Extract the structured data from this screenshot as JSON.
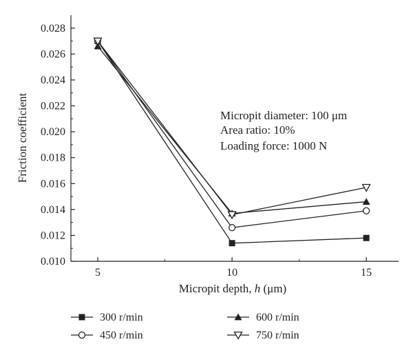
{
  "chart_data": {
    "type": "line",
    "xlabel": "Micropit depth, h (μm)",
    "xlabel_parts": {
      "prefix": "Micropit depth, ",
      "var": "h",
      "suffix": " (μm)"
    },
    "ylabel": "Friction coefficient",
    "x": [
      5,
      10,
      15
    ],
    "x_tick_labels": [
      "5",
      "10",
      "15"
    ],
    "xlim": [
      4,
      16.2
    ],
    "ylim": [
      0.01,
      0.029
    ],
    "y_ticks": [
      0.01,
      0.012,
      0.014,
      0.016,
      0.018,
      0.02,
      0.022,
      0.024,
      0.026,
      0.028
    ],
    "y_tick_labels": [
      "0.010",
      "0.012",
      "0.014",
      "0.016",
      "0.018",
      "0.020",
      "0.022",
      "0.024",
      "0.026",
      "0.028"
    ],
    "grid": false,
    "series": [
      {
        "name": "300 r/min",
        "marker": "filled-square",
        "values": [
          0.027,
          0.0114,
          0.0118
        ]
      },
      {
        "name": "450 r/min",
        "marker": "open-circle",
        "values": [
          0.027,
          0.0126,
          0.0139
        ]
      },
      {
        "name": "600 r/min",
        "marker": "filled-triangle-up",
        "values": [
          0.0266,
          0.0137,
          0.0146
        ]
      },
      {
        "name": "750 r/min",
        "marker": "open-triangle-down",
        "values": [
          0.027,
          0.0136,
          0.0157
        ]
      }
    ],
    "annotation": [
      "Micropit diameter: 100 μm",
      "Area ratio: 10%",
      "Loading force: 1000 N"
    ],
    "legend_placement": "bottom",
    "line_color": "#222222"
  }
}
